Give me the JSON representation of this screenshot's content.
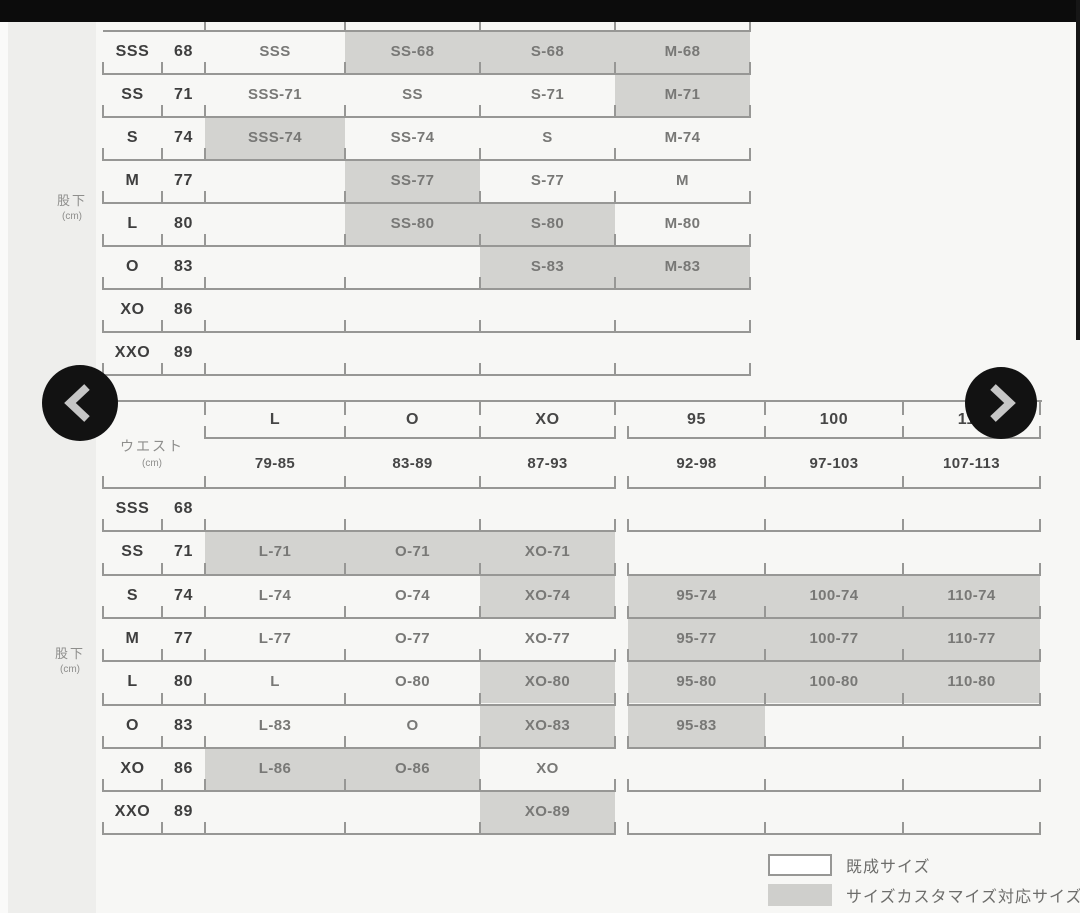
{
  "inseam_axis": {
    "label": "股下",
    "unit": "(cm)"
  },
  "waist_axis": {
    "label": "ウエスト",
    "unit": "(cm)"
  },
  "carousel": {
    "prev_icon": "chevron-left",
    "next_icon": "chevron-right"
  },
  "colors": {
    "ready_made_bg": "#ffffff",
    "customizable_bg": "#d3d3d0",
    "table_line": "#979795",
    "top_bar": "#0c0c0c"
  },
  "table_top": {
    "rows": [
      {
        "size": "SSS",
        "inseam": "68",
        "cells": [
          {
            "text": "SSS",
            "custom": false
          },
          {
            "text": "SS-68",
            "custom": true
          },
          {
            "text": "S-68",
            "custom": true
          },
          {
            "text": "M-68",
            "custom": true
          }
        ]
      },
      {
        "size": "SS",
        "inseam": "71",
        "cells": [
          {
            "text": "SSS-71",
            "custom": false
          },
          {
            "text": "SS",
            "custom": false
          },
          {
            "text": "S-71",
            "custom": false
          },
          {
            "text": "M-71",
            "custom": true
          }
        ]
      },
      {
        "size": "S",
        "inseam": "74",
        "cells": [
          {
            "text": "SSS-74",
            "custom": true
          },
          {
            "text": "SS-74",
            "custom": false
          },
          {
            "text": "S",
            "custom": false
          },
          {
            "text": "M-74",
            "custom": false
          }
        ]
      },
      {
        "size": "M",
        "inseam": "77",
        "cells": [
          {
            "text": "",
            "custom": false
          },
          {
            "text": "SS-77",
            "custom": true
          },
          {
            "text": "S-77",
            "custom": false
          },
          {
            "text": "M",
            "custom": false
          }
        ]
      },
      {
        "size": "L",
        "inseam": "80",
        "cells": [
          {
            "text": "",
            "custom": false
          },
          {
            "text": "SS-80",
            "custom": true
          },
          {
            "text": "S-80",
            "custom": true
          },
          {
            "text": "M-80",
            "custom": false
          }
        ]
      },
      {
        "size": "O",
        "inseam": "83",
        "cells": [
          {
            "text": "",
            "custom": false
          },
          {
            "text": "",
            "custom": false
          },
          {
            "text": "S-83",
            "custom": true
          },
          {
            "text": "M-83",
            "custom": true
          }
        ]
      },
      {
        "size": "XO",
        "inseam": "86",
        "cells": [
          {
            "text": "",
            "custom": false
          },
          {
            "text": "",
            "custom": false
          },
          {
            "text": "",
            "custom": false
          },
          {
            "text": "",
            "custom": false
          }
        ]
      },
      {
        "size": "XXO",
        "inseam": "89",
        "cells": [
          {
            "text": "",
            "custom": false
          },
          {
            "text": "",
            "custom": false
          },
          {
            "text": "",
            "custom": false
          },
          {
            "text": "",
            "custom": false
          }
        ]
      }
    ]
  },
  "table_bottom": {
    "waist_columns": [
      {
        "name": "L",
        "range": "79-85"
      },
      {
        "name": "O",
        "range": "83-89"
      },
      {
        "name": "XO",
        "range": "87-93"
      },
      {
        "name": "95",
        "range": "92-98"
      },
      {
        "name": "100",
        "range": "97-103"
      },
      {
        "name": "110",
        "range": "107-113"
      }
    ],
    "rows": [
      {
        "size": "SSS",
        "inseam": "68",
        "cells": [
          {
            "text": "",
            "custom": false
          },
          {
            "text": "",
            "custom": false
          },
          {
            "text": "",
            "custom": false
          },
          {
            "text": "",
            "custom": false
          },
          {
            "text": "",
            "custom": false
          },
          {
            "text": "",
            "custom": false
          }
        ]
      },
      {
        "size": "SS",
        "inseam": "71",
        "cells": [
          {
            "text": "L-71",
            "custom": true
          },
          {
            "text": "O-71",
            "custom": true
          },
          {
            "text": "XO-71",
            "custom": true
          },
          {
            "text": "",
            "custom": false
          },
          {
            "text": "",
            "custom": false
          },
          {
            "text": "",
            "custom": false
          }
        ]
      },
      {
        "size": "S",
        "inseam": "74",
        "cells": [
          {
            "text": "L-74",
            "custom": false
          },
          {
            "text": "O-74",
            "custom": false
          },
          {
            "text": "XO-74",
            "custom": true
          },
          {
            "text": "95-74",
            "custom": true
          },
          {
            "text": "100-74",
            "custom": true
          },
          {
            "text": "110-74",
            "custom": true
          }
        ]
      },
      {
        "size": "M",
        "inseam": "77",
        "cells": [
          {
            "text": "L-77",
            "custom": false
          },
          {
            "text": "O-77",
            "custom": false
          },
          {
            "text": "XO-77",
            "custom": false
          },
          {
            "text": "95-77",
            "custom": true
          },
          {
            "text": "100-77",
            "custom": true
          },
          {
            "text": "110-77",
            "custom": true
          }
        ]
      },
      {
        "size": "L",
        "inseam": "80",
        "cells": [
          {
            "text": "L",
            "custom": false
          },
          {
            "text": "O-80",
            "custom": false
          },
          {
            "text": "XO-80",
            "custom": true
          },
          {
            "text": "95-80",
            "custom": true
          },
          {
            "text": "100-80",
            "custom": true
          },
          {
            "text": "110-80",
            "custom": true
          }
        ]
      },
      {
        "size": "O",
        "inseam": "83",
        "cells": [
          {
            "text": "L-83",
            "custom": false
          },
          {
            "text": "O",
            "custom": false
          },
          {
            "text": "XO-83",
            "custom": true
          },
          {
            "text": "95-83",
            "custom": true
          },
          {
            "text": "",
            "custom": false
          },
          {
            "text": "",
            "custom": false
          }
        ]
      },
      {
        "size": "XO",
        "inseam": "86",
        "cells": [
          {
            "text": "L-86",
            "custom": true
          },
          {
            "text": "O-86",
            "custom": true
          },
          {
            "text": "XO",
            "custom": false
          },
          {
            "text": "",
            "custom": false
          },
          {
            "text": "",
            "custom": false
          },
          {
            "text": "",
            "custom": false
          }
        ]
      },
      {
        "size": "XXO",
        "inseam": "89",
        "cells": [
          {
            "text": "",
            "custom": false
          },
          {
            "text": "",
            "custom": false
          },
          {
            "text": "XO-89",
            "custom": true
          },
          {
            "text": "",
            "custom": false
          },
          {
            "text": "",
            "custom": false
          },
          {
            "text": "",
            "custom": false
          }
        ]
      }
    ]
  },
  "legend": {
    "ready_made": "既成サイズ",
    "customizable": "サイズカスタマイズ対応サイズ"
  }
}
